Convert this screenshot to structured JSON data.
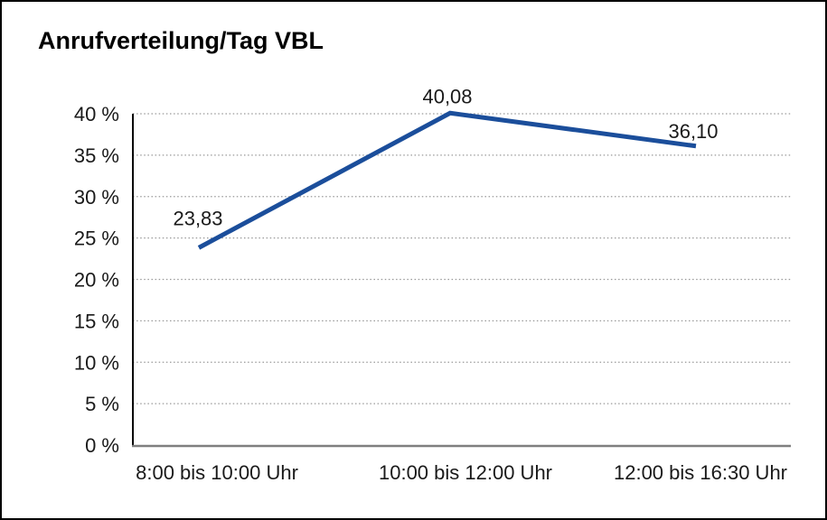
{
  "window": {
    "background_color": "#ffffff",
    "border_color": "#000000"
  },
  "chart_data": {
    "type": "line",
    "title": "Anrufverteilung/Tag VBL",
    "categories": [
      "8:00 bis 10:00 Uhr",
      "10:00 bis 12:00 Uhr",
      "12:00 bis 16:30 Uhr"
    ],
    "series": [
      {
        "values": [
          23.83,
          40.08,
          36.1
        ],
        "point_labels": [
          "23,83",
          "40,08",
          "36,10"
        ],
        "color": "#1B4E9B"
      }
    ],
    "xlabel": "",
    "ylabel": "",
    "ylim": [
      0,
      40
    ],
    "y_ticks": [
      {
        "value": 40,
        "label": "40 %"
      },
      {
        "value": 35,
        "label": "35 %"
      },
      {
        "value": 30,
        "label": "30 %"
      },
      {
        "value": 25,
        "label": "25 %"
      },
      {
        "value": 20,
        "label": "20 %"
      },
      {
        "value": 15,
        "label": "15 %"
      },
      {
        "value": 10,
        "label": "10 %"
      },
      {
        "value": 5,
        "label": "5 %"
      },
      {
        "value": 0,
        "label": "0 %"
      }
    ],
    "grid": "horizontal-dotted",
    "legend": "none"
  },
  "colors": {
    "line": "#1B4E9B",
    "gridline": "#999999",
    "y_axis": "#000000",
    "x_axis": "#7F7F7F",
    "text": "#1A1A1A"
  }
}
